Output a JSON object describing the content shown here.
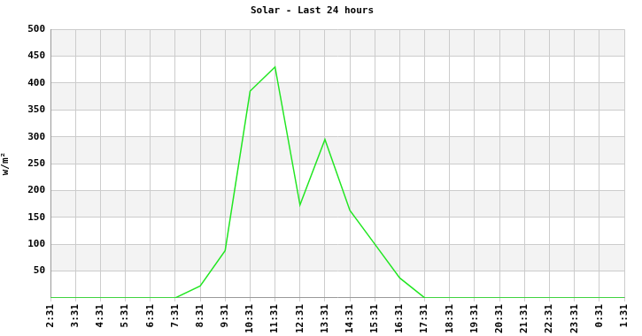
{
  "chart_data": {
    "type": "line",
    "title": "Solar - Last 24 hours",
    "y_label": "w/m²",
    "categories": [
      "2:31",
      "3:31",
      "4:31",
      "5:31",
      "6:31",
      "7:31",
      "8:31",
      "9:31",
      "10:31",
      "11:31",
      "12:31",
      "13:31",
      "14:31",
      "15:31",
      "16:31",
      "17:31",
      "18:31",
      "19:31",
      "20:31",
      "21:31",
      "22:31",
      "23:31",
      "0:31",
      "1:31"
    ],
    "values": [
      0,
      0,
      0,
      0,
      0,
      0,
      22,
      88,
      385,
      430,
      173,
      295,
      163,
      100,
      37,
      0,
      0,
      0,
      0,
      0,
      0,
      0,
      0,
      0
    ],
    "color": "#22e622",
    "ylim": [
      0,
      500
    ],
    "yticks": [
      50,
      100,
      150,
      200,
      250,
      300,
      350,
      400,
      450,
      500
    ],
    "grid": true
  }
}
